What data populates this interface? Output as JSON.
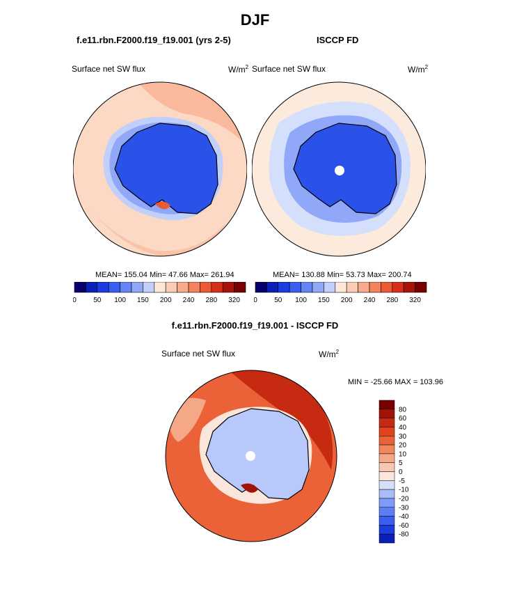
{
  "figure": {
    "title": "DJF",
    "top_left_title": "f.e11.rbn.F2000.f19_f19.001 (yrs 2-5)",
    "top_right_title": "ISCCP FD",
    "diff_title": "f.e11.rbn.F2000.f19_f19.001 - ISCCP FD"
  },
  "panels": {
    "left": {
      "variable": "Surface net SW flux",
      "units_base": "W/m",
      "units_exp": "2",
      "stats": "MEAN= 155.04  Min=  47.66  Max= 261.94"
    },
    "right": {
      "variable": "Surface net SW flux",
      "units_base": "W/m",
      "units_exp": "2",
      "stats": "MEAN= 130.88  Min=  53.73  Max= 200.74"
    },
    "diff": {
      "variable": "Surface net SW flux",
      "units_base": "W/m",
      "units_exp": "2",
      "stats": "MIN = -25.66 MAX = 103.96"
    }
  },
  "colors": {
    "abs_scale": [
      "#08006e",
      "#0a1fb8",
      "#1a3de0",
      "#3a5ff0",
      "#6584f5",
      "#91a8f8",
      "#c1cffb",
      "#fde7d8",
      "#fbcbb3",
      "#f9a98c",
      "#f5815f",
      "#ec5a33",
      "#d5301a",
      "#a81409",
      "#780000"
    ],
    "diff_scale": [
      "#08006e",
      "#0a1fb8",
      "#1a3de0",
      "#3a5ff0",
      "#5c7ef4",
      "#809af7",
      "#a9bcf9",
      "#d4dffc",
      "#fbe6dc",
      "#f8c7b1",
      "#f5a888",
      "#f2865f",
      "#ec6238",
      "#e0441c",
      "#c62a10",
      "#a01305",
      "#780000"
    ],
    "land_abs": "#2a52e8",
    "ocean_model": "#fbd9c4",
    "ocean_obs": "#fcebdd",
    "diff_ocean": "#ec6238",
    "diff_land": "#b8c8fb"
  },
  "chart_data": [
    {
      "type": "heatmap",
      "projection": "south-polar-stereographic",
      "title": "f.e11.rbn.F2000.f19_f19.001 (yrs 2-5)",
      "variable": "Surface net SW flux",
      "units": "W/m2",
      "colorbar_ticks": [
        0,
        50,
        100,
        150,
        200,
        240,
        280,
        320
      ],
      "colorbar_bins": 15,
      "mean": 155.04,
      "min": 47.66,
      "max": 261.94
    },
    {
      "type": "heatmap",
      "projection": "south-polar-stereographic",
      "title": "ISCCP FD",
      "variable": "Surface net SW flux",
      "units": "W/m2",
      "colorbar_ticks": [
        0,
        50,
        100,
        150,
        200,
        240,
        280,
        320
      ],
      "colorbar_bins": 15,
      "mean": 130.88,
      "min": 53.73,
      "max": 200.74
    },
    {
      "type": "heatmap",
      "projection": "south-polar-stereographic",
      "title": "f.e11.rbn.F2000.f19_f19.001 - ISCCP FD",
      "variable": "Surface net SW flux",
      "units": "W/m2",
      "colorbar_levels": [
        80,
        60,
        40,
        30,
        20,
        10,
        5,
        0,
        -5,
        -10,
        -20,
        -30,
        -40,
        -60,
        -80
      ],
      "min": -25.66,
      "max": 103.96
    }
  ]
}
